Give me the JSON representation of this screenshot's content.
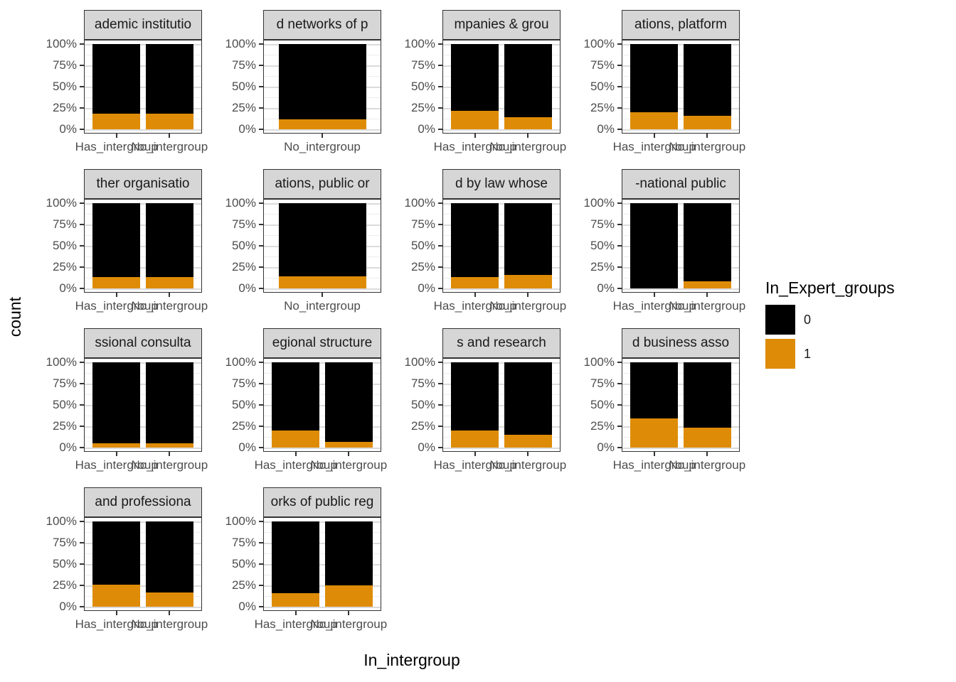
{
  "figure": {
    "y_axis_title": "count",
    "x_axis_title": "In_intergroup"
  },
  "colors": {
    "bar_fill_0": "#000000",
    "bar_fill_1": "#DE8C07",
    "strip_background": "#D6D6D6",
    "panel_border": "#333333",
    "grid_major": "#DBDBDB",
    "grid_minor": "#EDEDED",
    "axis_text": "#4D4D4D"
  },
  "chart_data": {
    "type": "bar",
    "stacked": true,
    "normalized_percent": true,
    "title": "",
    "xlabel": "In_intergroup",
    "ylabel": "count",
    "ylim": [
      0,
      100
    ],
    "y_tick_labels": [
      "100%",
      "75%",
      "50%",
      "25%",
      "0%"
    ],
    "grid": true,
    "legend": {
      "title": "In_Expert_groups",
      "position": "right",
      "items": [
        {
          "label": "0",
          "color": "#000000"
        },
        {
          "label": "1",
          "color": "#DE8C07"
        }
      ]
    },
    "facets": [
      {
        "strip_label": "ademic institutio",
        "bars": [
          {
            "x": "Has_intergroup",
            "pct_0": 82,
            "pct_1": 18
          },
          {
            "x": "No_intergroup",
            "pct_0": 82,
            "pct_1": 18
          }
        ]
      },
      {
        "strip_label": "d networks of p",
        "bars": [
          {
            "x": "No_intergroup",
            "pct_0": 88,
            "pct_1": 12
          }
        ]
      },
      {
        "strip_label": "mpanies & grou",
        "bars": [
          {
            "x": "Has_intergroup",
            "pct_0": 78,
            "pct_1": 22
          },
          {
            "x": "No_intergroup",
            "pct_0": 86,
            "pct_1": 14
          }
        ]
      },
      {
        "strip_label": "ations, platform",
        "bars": [
          {
            "x": "Has_intergroup",
            "pct_0": 80,
            "pct_1": 20
          },
          {
            "x": "No_intergroup",
            "pct_0": 84,
            "pct_1": 16
          }
        ]
      },
      {
        "strip_label": "ther organisatio",
        "bars": [
          {
            "x": "Has_intergroup",
            "pct_0": 87,
            "pct_1": 13
          },
          {
            "x": "No_intergroup",
            "pct_0": 87,
            "pct_1": 13
          }
        ]
      },
      {
        "strip_label": "ations, public or",
        "bars": [
          {
            "x": "No_intergroup",
            "pct_0": 86,
            "pct_1": 14
          }
        ]
      },
      {
        "strip_label": "d by law whose",
        "bars": [
          {
            "x": "Has_intergroup",
            "pct_0": 87,
            "pct_1": 13
          },
          {
            "x": "No_intergroup",
            "pct_0": 84,
            "pct_1": 16
          }
        ]
      },
      {
        "strip_label": "-national public",
        "bars": [
          {
            "x": "Has_intergroup",
            "pct_0": 100,
            "pct_1": 0
          },
          {
            "x": "No_intergroup",
            "pct_0": 92,
            "pct_1": 8
          }
        ]
      },
      {
        "strip_label": "ssional consulta",
        "bars": [
          {
            "x": "Has_intergroup",
            "pct_0": 95,
            "pct_1": 5
          },
          {
            "x": "No_intergroup",
            "pct_0": 95,
            "pct_1": 5
          }
        ]
      },
      {
        "strip_label": "egional structure",
        "bars": [
          {
            "x": "Has_intergroup",
            "pct_0": 80,
            "pct_1": 20
          },
          {
            "x": "No_intergroup",
            "pct_0": 93,
            "pct_1": 7
          }
        ]
      },
      {
        "strip_label": "s and research",
        "bars": [
          {
            "x": "Has_intergroup",
            "pct_0": 80,
            "pct_1": 20
          },
          {
            "x": "No_intergroup",
            "pct_0": 85,
            "pct_1": 15
          }
        ]
      },
      {
        "strip_label": "d business asso",
        "bars": [
          {
            "x": "Has_intergroup",
            "pct_0": 66,
            "pct_1": 34
          },
          {
            "x": "No_intergroup",
            "pct_0": 77,
            "pct_1": 23
          }
        ]
      },
      {
        "strip_label": "and professiona",
        "bars": [
          {
            "x": "Has_intergroup",
            "pct_0": 74,
            "pct_1": 26
          },
          {
            "x": "No_intergroup",
            "pct_0": 83,
            "pct_1": 17
          }
        ]
      },
      {
        "strip_label": "orks of public reg",
        "bars": [
          {
            "x": "Has_intergroup",
            "pct_0": 84,
            "pct_1": 16
          },
          {
            "x": "No_intergroup",
            "pct_0": 75,
            "pct_1": 25
          }
        ]
      }
    ]
  }
}
